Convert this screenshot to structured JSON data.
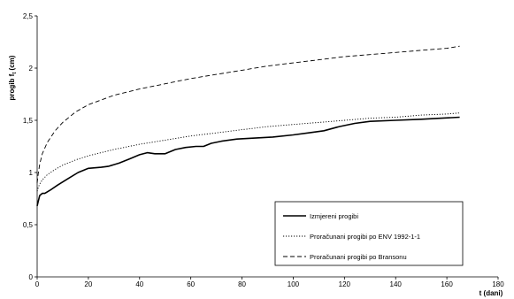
{
  "chart_data": {
    "type": "line",
    "xlabel": "t (dani)",
    "ylabel_main": "progib f",
    "ylabel_sub": "t",
    "ylabel_unit": " (cm)",
    "xlim": [
      0,
      180
    ],
    "ylim": [
      0,
      2.5
    ],
    "xticks": [
      "0",
      "20",
      "40",
      "60",
      "80",
      "100",
      "120",
      "140",
      "160",
      "180"
    ],
    "yticks": [
      "0",
      "0,5",
      "1",
      "1,5",
      "2",
      "2,5"
    ],
    "grid": false,
    "legend_position": "bottom-right",
    "series": [
      {
        "name": "Izmjereni progibi",
        "style": "solid",
        "x": [
          0,
          0.5,
          1,
          2,
          3,
          5,
          8,
          12,
          16,
          20,
          25,
          28,
          32,
          36,
          40,
          43,
          46,
          50,
          54,
          58,
          62,
          65,
          68,
          72,
          78,
          85,
          92,
          100,
          106,
          112,
          118,
          124,
          130,
          140,
          150,
          158,
          165
        ],
        "y": [
          0.68,
          0.73,
          0.78,
          0.8,
          0.8,
          0.83,
          0.88,
          0.94,
          1.0,
          1.04,
          1.05,
          1.06,
          1.09,
          1.13,
          1.17,
          1.19,
          1.18,
          1.18,
          1.22,
          1.24,
          1.25,
          1.25,
          1.28,
          1.3,
          1.32,
          1.33,
          1.34,
          1.36,
          1.38,
          1.4,
          1.44,
          1.47,
          1.49,
          1.5,
          1.51,
          1.52,
          1.53
        ]
      },
      {
        "name": "Proračunani progibi po ENV 1992-1-1",
        "style": "dotted",
        "x": [
          0,
          0.5,
          1,
          2,
          4,
          7,
          10,
          15,
          20,
          30,
          40,
          50,
          60,
          70,
          80,
          90,
          100,
          110,
          120,
          130,
          140,
          150,
          160,
          165
        ],
        "y": [
          0.82,
          0.86,
          0.89,
          0.93,
          0.98,
          1.03,
          1.07,
          1.12,
          1.16,
          1.22,
          1.27,
          1.31,
          1.35,
          1.38,
          1.41,
          1.44,
          1.46,
          1.48,
          1.5,
          1.52,
          1.53,
          1.55,
          1.56,
          1.57
        ]
      },
      {
        "name": "Proračunani progibi po Bransonu",
        "style": "dashed",
        "x": [
          0,
          0.5,
          1,
          2,
          4,
          7,
          10,
          15,
          20,
          30,
          40,
          50,
          60,
          70,
          80,
          90,
          100,
          110,
          120,
          130,
          140,
          150,
          160,
          165
        ],
        "y": [
          0.9,
          1.0,
          1.08,
          1.18,
          1.29,
          1.4,
          1.48,
          1.58,
          1.65,
          1.74,
          1.8,
          1.85,
          1.9,
          1.94,
          1.98,
          2.02,
          2.05,
          2.08,
          2.11,
          2.13,
          2.15,
          2.17,
          2.19,
          2.21
        ]
      }
    ]
  }
}
